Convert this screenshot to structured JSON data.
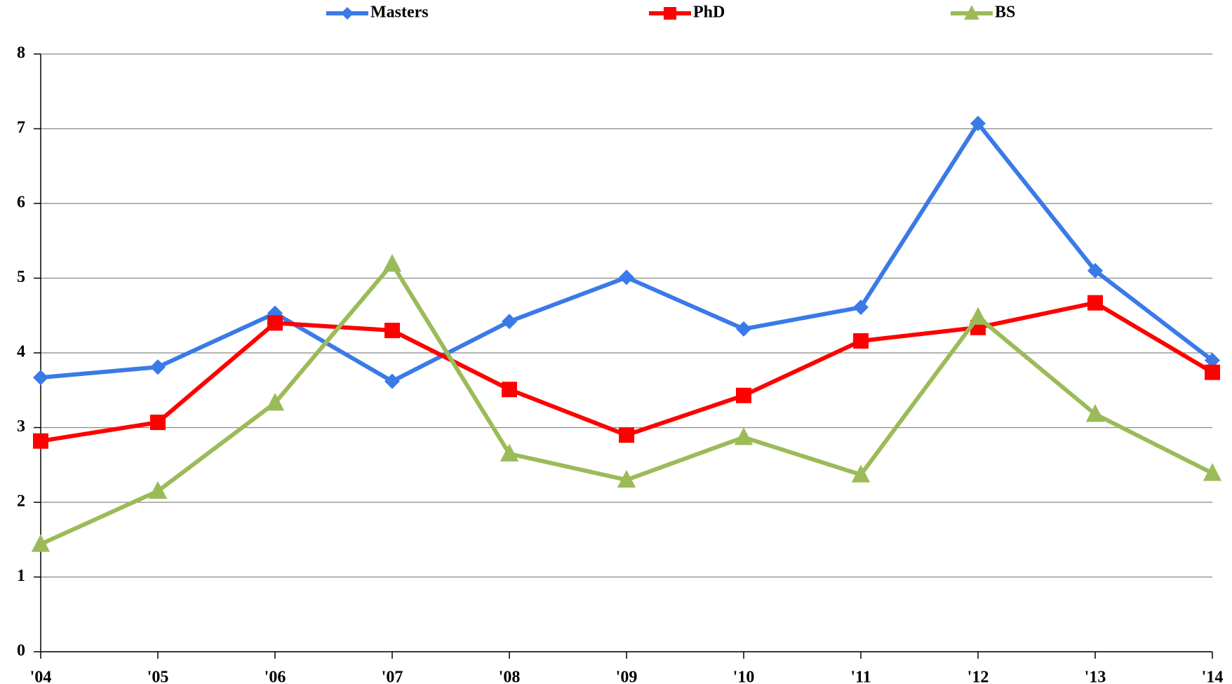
{
  "chart_data": {
    "type": "line",
    "categories": [
      "'04",
      "'05",
      "'06",
      "'07",
      "'08",
      "'09",
      "'10",
      "'11",
      "'12",
      "'13",
      "'14"
    ],
    "series": [
      {
        "name": "Masters",
        "color": "#3a7ae8",
        "marker": "diamond",
        "values": [
          3.67,
          3.81,
          4.53,
          3.62,
          4.42,
          5.01,
          4.32,
          4.61,
          7.07,
          5.1,
          3.9
        ]
      },
      {
        "name": "PhD",
        "color": "#ff0000",
        "marker": "square",
        "values": [
          2.82,
          3.07,
          4.4,
          4.3,
          3.51,
          2.9,
          3.43,
          4.16,
          4.34,
          4.67,
          3.74
        ]
      },
      {
        "name": "BS",
        "color": "#9bbb59",
        "marker": "triangle",
        "values": [
          1.44,
          2.15,
          3.33,
          5.19,
          2.65,
          2.3,
          2.87,
          2.37,
          4.48,
          3.18,
          2.39
        ]
      }
    ],
    "ylim": [
      0,
      8
    ],
    "yticks": [
      0,
      1,
      2,
      3,
      4,
      5,
      6,
      7,
      8
    ],
    "grid": true,
    "legend": "top"
  }
}
